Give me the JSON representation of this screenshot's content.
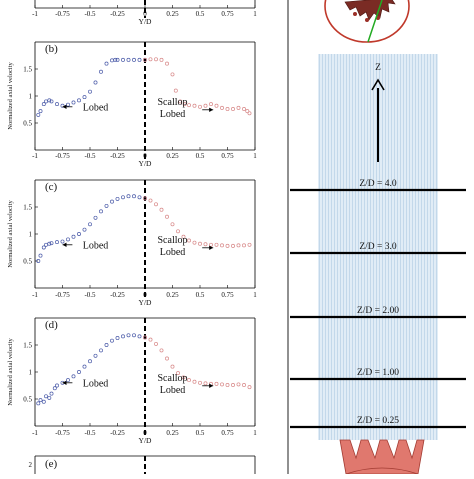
{
  "figure": {
    "left_column": "chart panels",
    "right_column": "schematic"
  },
  "chart_data": [
    {
      "panel": "top-partial",
      "type": "scatter",
      "xlabel": "Y/D",
      "ylabel": "",
      "xlim": [
        -1,
        1
      ],
      "x_ticks": [
        "-1",
        "-0.75",
        "-0.5",
        "-0.25",
        "0",
        "0.25",
        "0.5",
        "0.75",
        "1"
      ],
      "y_ticks": [],
      "series": []
    },
    {
      "panel": "(b)",
      "type": "scatter",
      "xlabel": "Y/D",
      "ylabel": "Normalized axial velocity",
      "xlim": [
        -1,
        1
      ],
      "ylim": [
        0,
        2
      ],
      "x_ticks": [
        "-1",
        "-0.75",
        "-0.5",
        "-0.25",
        "0",
        "0.25",
        "0.5",
        "0.75",
        "1"
      ],
      "y_ticks": [
        "0.5",
        "1",
        "1.5"
      ],
      "annotations": {
        "left": "Lobed",
        "right_line1": "Scallop",
        "right_line2": "Lobed"
      },
      "series": [
        {
          "color": "#4a5aa8",
          "x": [
            -0.97,
            -0.95,
            -0.92,
            -0.9,
            -0.87,
            -0.85,
            -0.8,
            -0.75,
            -0.7,
            -0.65,
            -0.6,
            -0.55,
            -0.5,
            -0.45,
            -0.4,
            -0.35,
            -0.3,
            -0.27,
            -0.25,
            -0.2,
            -0.15,
            -0.1,
            -0.05,
            0.0
          ],
          "y": [
            0.65,
            0.72,
            0.85,
            0.9,
            0.92,
            0.9,
            0.85,
            0.82,
            0.84,
            0.88,
            0.92,
            0.98,
            1.08,
            1.25,
            1.45,
            1.6,
            1.66,
            1.67,
            1.67,
            1.67,
            1.67,
            1.67,
            1.67,
            1.67
          ]
        },
        {
          "color": "#d88a8a",
          "x": [
            0.0,
            0.05,
            0.1,
            0.15,
            0.2,
            0.25,
            0.28,
            0.32,
            0.36,
            0.4,
            0.45,
            0.5,
            0.55,
            0.6,
            0.65,
            0.7,
            0.75,
            0.8,
            0.85,
            0.9,
            0.93,
            0.95
          ],
          "y": [
            1.67,
            1.68,
            1.68,
            1.67,
            1.6,
            1.4,
            1.1,
            0.9,
            0.85,
            0.83,
            0.82,
            0.8,
            0.82,
            0.85,
            0.82,
            0.78,
            0.76,
            0.76,
            0.78,
            0.76,
            0.72,
            0.68
          ]
        }
      ]
    },
    {
      "panel": "(c)",
      "type": "scatter",
      "xlabel": "Y/D",
      "ylabel": "Normalized axial velocity",
      "xlim": [
        -1,
        1
      ],
      "ylim": [
        0,
        2
      ],
      "x_ticks": [
        "-1",
        "-0.75",
        "-0.5",
        "-0.25",
        "0",
        "0.25",
        "0.5",
        "0.75",
        "1"
      ],
      "y_ticks": [
        "0.5",
        "1",
        "1.5"
      ],
      "annotations": {
        "left": "Lobed",
        "right_line1": "Scallop",
        "right_line2": "Lobed"
      },
      "series": [
        {
          "color": "#4a5aa8",
          "x": [
            -0.97,
            -0.95,
            -0.92,
            -0.9,
            -0.87,
            -0.85,
            -0.8,
            -0.75,
            -0.7,
            -0.65,
            -0.6,
            -0.55,
            -0.5,
            -0.45,
            -0.4,
            -0.35,
            -0.3,
            -0.25,
            -0.2,
            -0.15,
            -0.1,
            -0.05,
            0.0
          ],
          "y": [
            0.5,
            0.6,
            0.75,
            0.8,
            0.82,
            0.83,
            0.85,
            0.86,
            0.9,
            0.95,
            1.0,
            1.08,
            1.18,
            1.3,
            1.42,
            1.52,
            1.6,
            1.65,
            1.68,
            1.7,
            1.7,
            1.68,
            1.66
          ]
        },
        {
          "color": "#d88a8a",
          "x": [
            0.0,
            0.05,
            0.1,
            0.15,
            0.2,
            0.25,
            0.3,
            0.35,
            0.4,
            0.45,
            0.5,
            0.55,
            0.6,
            0.65,
            0.7,
            0.75,
            0.8,
            0.85,
            0.9,
            0.95
          ],
          "y": [
            1.66,
            1.62,
            1.55,
            1.45,
            1.32,
            1.18,
            1.05,
            0.95,
            0.88,
            0.84,
            0.82,
            0.81,
            0.8,
            0.8,
            0.79,
            0.78,
            0.78,
            0.79,
            0.79,
            0.8
          ]
        }
      ]
    },
    {
      "panel": "(d)",
      "type": "scatter",
      "xlabel": "Y/D",
      "ylabel": "Normalized axial velocity",
      "xlim": [
        -1,
        1
      ],
      "ylim": [
        0,
        2
      ],
      "x_ticks": [
        "-1",
        "-0.75",
        "-0.5",
        "-0.25",
        "0",
        "0.25",
        "0.5",
        "0.75",
        "1"
      ],
      "y_ticks": [
        "0.5",
        "1",
        "1.5"
      ],
      "annotations": {
        "left": "Lobed",
        "right_line1": "Scallop",
        "right_line2": "Lobed"
      },
      "series": [
        {
          "color": "#4a5aa8",
          "x": [
            -0.97,
            -0.95,
            -0.92,
            -0.9,
            -0.87,
            -0.85,
            -0.82,
            -0.8,
            -0.75,
            -0.7,
            -0.65,
            -0.6,
            -0.55,
            -0.5,
            -0.45,
            -0.4,
            -0.35,
            -0.3,
            -0.25,
            -0.2,
            -0.15,
            -0.1,
            -0.05,
            0.0
          ],
          "y": [
            0.42,
            0.48,
            0.45,
            0.55,
            0.52,
            0.6,
            0.7,
            0.75,
            0.8,
            0.85,
            0.92,
            1.0,
            1.1,
            1.2,
            1.3,
            1.4,
            1.5,
            1.58,
            1.63,
            1.66,
            1.68,
            1.68,
            1.66,
            1.64
          ]
        },
        {
          "color": "#d88a8a",
          "x": [
            0.0,
            0.05,
            0.1,
            0.15,
            0.2,
            0.25,
            0.3,
            0.35,
            0.4,
            0.45,
            0.5,
            0.55,
            0.6,
            0.65,
            0.7,
            0.75,
            0.8,
            0.85,
            0.9,
            0.95
          ],
          "y": [
            1.64,
            1.6,
            1.52,
            1.4,
            1.25,
            1.1,
            0.98,
            0.9,
            0.85,
            0.82,
            0.8,
            0.79,
            0.78,
            0.78,
            0.77,
            0.76,
            0.76,
            0.77,
            0.76,
            0.72
          ]
        }
      ]
    },
    {
      "panel": "(e)",
      "type": "scatter",
      "xlabel": "",
      "ylabel": "",
      "xlim": [
        -1,
        1
      ],
      "x_ticks": [],
      "y_ticks": [
        "2"
      ],
      "series": []
    }
  ],
  "schematic": {
    "axis_label": "Z",
    "stations": [
      "Z/D = 4.0",
      "Z/D = 3.0",
      "Z/D = 2.00",
      "Z/D = 1.00",
      "Z/D = 0.25"
    ],
    "stations_value": [
      4.0,
      3.0,
      2.0,
      1.0,
      0.25
    ],
    "colors": {
      "jet": "#cfe3f2",
      "nozzle": "#e0786e",
      "nozzle_dark": "#a33c33",
      "ring": "#c0392b",
      "green": "#22aa22"
    }
  }
}
